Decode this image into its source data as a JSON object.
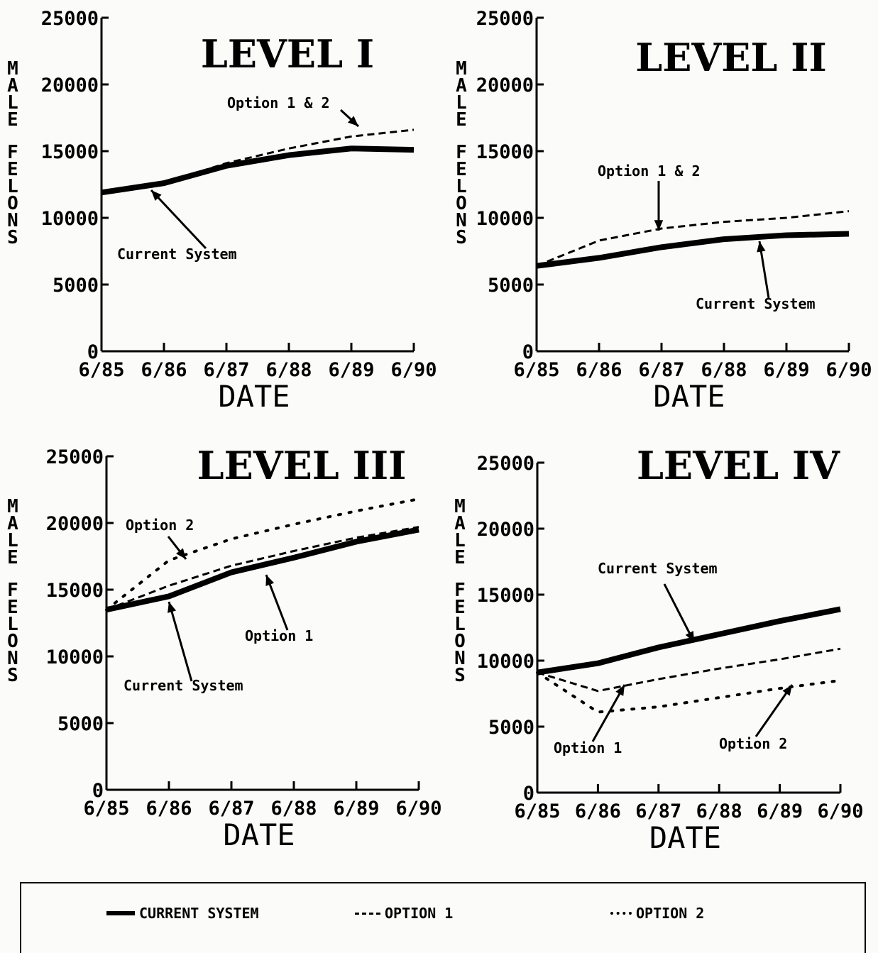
{
  "chart_data": [
    {
      "type": "line",
      "title": "LEVEL I",
      "xlabel": "DATE",
      "ylabel": "MALE FELONS",
      "x": [
        "6/85",
        "6/86",
        "6/87",
        "6/88",
        "6/89",
        "6/90"
      ],
      "ylim": [
        0,
        25000
      ],
      "yticks": [
        0,
        5000,
        10000,
        15000,
        20000,
        25000
      ],
      "series": [
        {
          "name": "CURRENT SYSTEM",
          "style": "solid",
          "values": [
            11900,
            12600,
            13900,
            14700,
            15200,
            15100
          ]
        },
        {
          "name": "OPTION 1",
          "style": "dashed",
          "values": [
            11900,
            12600,
            14100,
            15200,
            16100,
            16600
          ]
        }
      ],
      "annotations": [
        {
          "text": "Option 1 & 2",
          "x": "6/89",
          "y": 16200
        },
        {
          "text": "Current System",
          "x": "6/86",
          "y": 12400
        }
      ]
    },
    {
      "type": "line",
      "title": "LEVEL II",
      "xlabel": "DATE",
      "ylabel": "MALE FELONS",
      "x": [
        "6/85",
        "6/86",
        "6/87",
        "6/88",
        "6/89",
        "6/90"
      ],
      "ylim": [
        0,
        25000
      ],
      "yticks": [
        0,
        5000,
        10000,
        15000,
        20000,
        25000
      ],
      "series": [
        {
          "name": "CURRENT SYSTEM",
          "style": "solid",
          "values": [
            6400,
            7000,
            7800,
            8400,
            8700,
            8800
          ]
        },
        {
          "name": "OPTION 1",
          "style": "dashed",
          "values": [
            6400,
            8300,
            9200,
            9700,
            10000,
            10500
          ]
        }
      ],
      "annotations": [
        {
          "text": "Option 1 & 2",
          "x": "6/87",
          "y": 9200
        },
        {
          "text": "Current System",
          "x": "6/88",
          "y": 8500
        }
      ]
    },
    {
      "type": "line",
      "title": "LEVEL III",
      "xlabel": "DATE",
      "ylabel": "MALE FELONS",
      "x": [
        "6/85",
        "6/86",
        "6/87",
        "6/88",
        "6/89",
        "6/90"
      ],
      "ylim": [
        0,
        25000
      ],
      "yticks": [
        0,
        5000,
        10000,
        15000,
        20000,
        25000
      ],
      "series": [
        {
          "name": "CURRENT SYSTEM",
          "style": "solid",
          "values": [
            13500,
            14500,
            16300,
            17400,
            18600,
            19500
          ]
        },
        {
          "name": "OPTION 1",
          "style": "dashed",
          "values": [
            13500,
            15300,
            16800,
            17900,
            18900,
            19700
          ]
        },
        {
          "name": "OPTION 2",
          "style": "dotted",
          "values": [
            13500,
            17200,
            18800,
            19900,
            20900,
            21800
          ]
        }
      ],
      "annotations": [
        {
          "text": "Option 2",
          "x": "6/86",
          "y": 17200
        },
        {
          "text": "Option 1",
          "x": "6/87",
          "y": 16500
        },
        {
          "text": "Current System",
          "x": "6/86",
          "y": 14500
        }
      ]
    },
    {
      "type": "line",
      "title": "LEVEL IV",
      "xlabel": "DATE",
      "ylabel": "MALE FELONS",
      "x": [
        "6/85",
        "6/86",
        "6/87",
        "6/88",
        "6/89",
        "6/90"
      ],
      "ylim": [
        0,
        25000
      ],
      "yticks": [
        0,
        5000,
        10000,
        15000,
        20000,
        25000
      ],
      "series": [
        {
          "name": "CURRENT SYSTEM",
          "style": "solid",
          "values": [
            9100,
            9800,
            11000,
            12000,
            13000,
            13900
          ]
        },
        {
          "name": "OPTION 1",
          "style": "dashed",
          "values": [
            9100,
            7700,
            8600,
            9400,
            10100,
            10900
          ]
        },
        {
          "name": "OPTION 2",
          "style": "dotted",
          "values": [
            9100,
            6100,
            6500,
            7200,
            7900,
            8500
          ]
        }
      ],
      "annotations": [
        {
          "text": "Current System",
          "x": "6/88",
          "y": 11800
        },
        {
          "text": "Option 1",
          "x": "6/86",
          "y": 8000
        },
        {
          "text": "Option 2",
          "x": "6/89",
          "y": 8200
        }
      ]
    }
  ],
  "legend": [
    {
      "label": "CURRENT SYSTEM",
      "style": "solid"
    },
    {
      "label": "OPTION 1",
      "style": "dashed"
    },
    {
      "label": "OPTION 2",
      "style": "dotted"
    }
  ]
}
